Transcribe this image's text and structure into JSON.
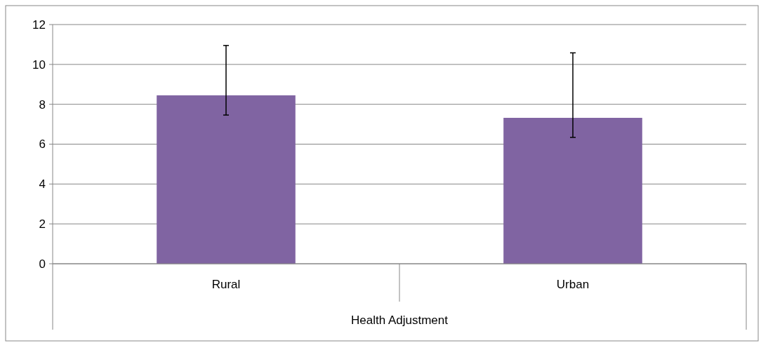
{
  "chart_data": {
    "type": "bar",
    "xlabel": "Health Adjustment",
    "categories": [
      "Rural",
      "Urban"
    ],
    "values": [
      8.45,
      7.32
    ],
    "color": "#8064a2",
    "errors": [
      [
        7.46,
        10.95
      ],
      [
        6.34,
        10.58
      ]
    ],
    "ylim": [
      0,
      12
    ],
    "yticks": [
      0,
      2,
      4,
      6,
      8,
      10,
      12
    ],
    "grid": "y"
  }
}
